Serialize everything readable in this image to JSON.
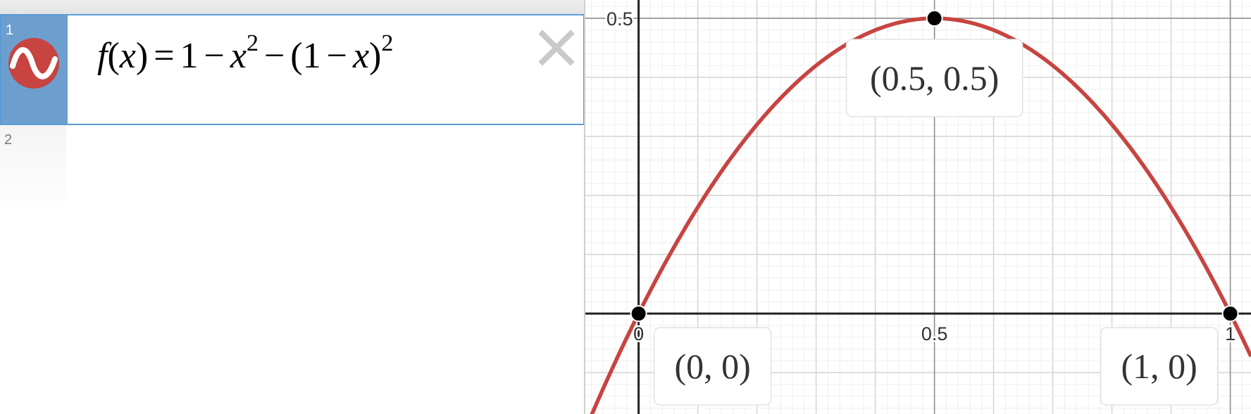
{
  "expressions": [
    {
      "index": "1",
      "color": "#c74440",
      "latex": {
        "fname": "f",
        "var": "x",
        "one": "1",
        "exp": "2",
        "minus": "−",
        "equals": "=",
        "lparen": "(",
        "rparen": ")"
      },
      "delete_icon": "close-icon"
    },
    {
      "index": "2"
    }
  ],
  "graph": {
    "x_ticks": [
      {
        "value": 0,
        "label": "0"
      },
      {
        "value": 0.5,
        "label": "0.5"
      },
      {
        "value": 1,
        "label": "1"
      }
    ],
    "y_ticks": [
      {
        "value": 0.5,
        "label": "0.5"
      }
    ],
    "xlim": [
      -0.09,
      1.035
    ],
    "ylim": [
      -0.17,
      0.531
    ],
    "grid_step": 0.1,
    "curve_color": "#c74440",
    "points": [
      {
        "x": 0,
        "y": 0,
        "label": "(0, 0)"
      },
      {
        "x": 0.5,
        "y": 0.5,
        "label": "(0.5, 0.5)"
      },
      {
        "x": 1,
        "y": 0,
        "label": "(1, 0)"
      }
    ]
  }
}
